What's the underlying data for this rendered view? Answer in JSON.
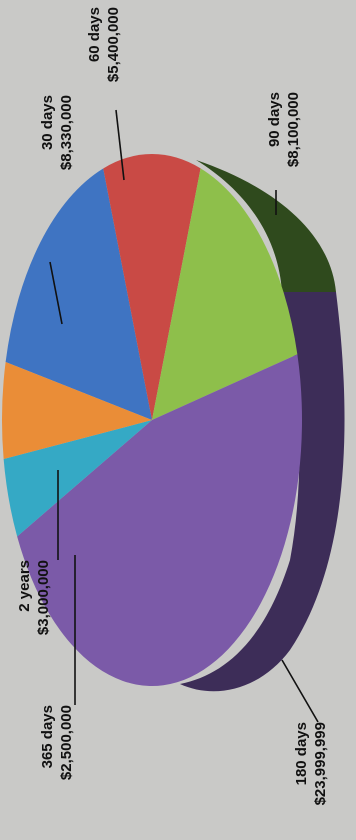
{
  "chart_data": {
    "type": "pie",
    "title": "",
    "slices": [
      {
        "label": "30 days",
        "value_text": "$8,330,000",
        "value": 8330000,
        "color": "#3f74c2"
      },
      {
        "label": "60 days",
        "value_text": "$5,400,000",
        "value": 5400000,
        "color": "#c94a45"
      },
      {
        "label": "90 days",
        "value_text": "$8,100,000",
        "value": 8100000,
        "color": "#8ebf4b"
      },
      {
        "label": "180 days",
        "value_text": "$23,999,999",
        "value": 23999999,
        "color": "#7b5aa8"
      },
      {
        "label": "365 days",
        "value_text": "$2,500,000",
        "value": 2500000,
        "color": "#35a9c5"
      },
      {
        "label": "2 years",
        "value_text": "$3,000,000",
        "value": 3000000,
        "color": "#ea8d37"
      }
    ],
    "style": "3d-pie, page rotated 90 degrees counter-clockwise"
  }
}
